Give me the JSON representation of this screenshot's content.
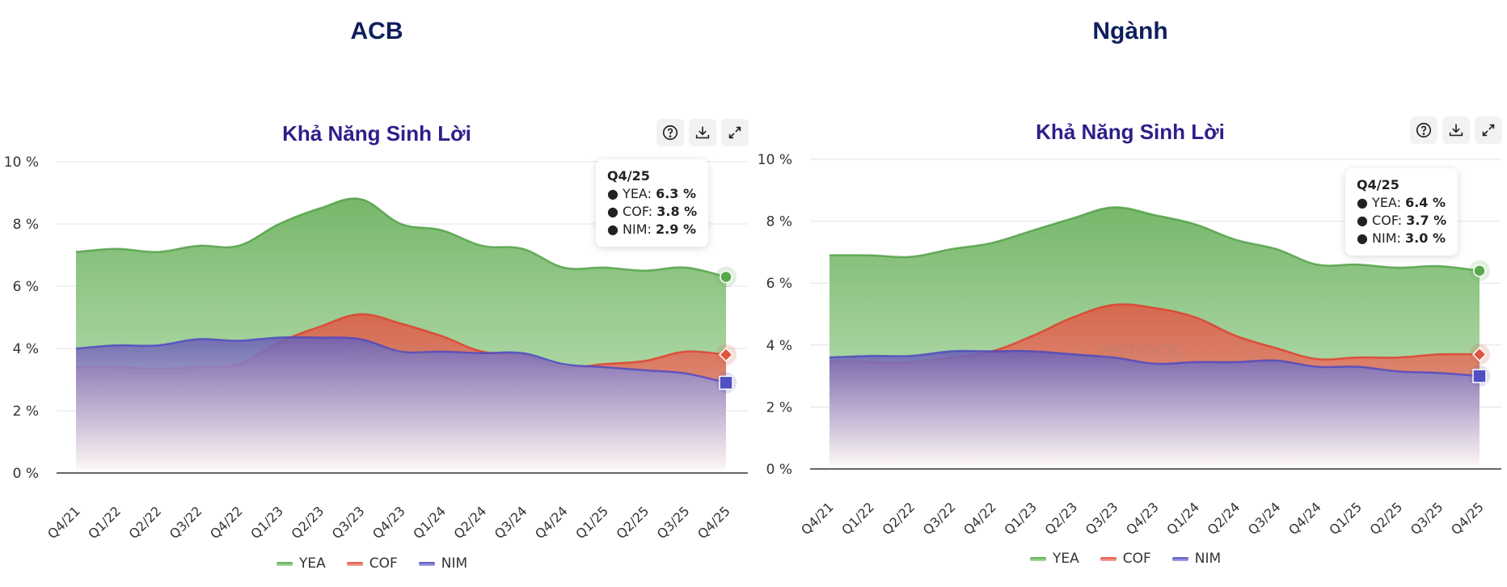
{
  "panels": [
    {
      "entity": "ACB",
      "title": "Khả Năng Sinh Lời",
      "toolbar": {
        "help": "help-icon",
        "download": "download-icon",
        "expand": "expand-icon"
      },
      "tooltip": {
        "title": "Q4/25",
        "rows": [
          {
            "label": "YEA:",
            "value": "6.3 %"
          },
          {
            "label": "COF:",
            "value": "3.8 %"
          },
          {
            "label": "NIM:",
            "value": "2.9 %"
          }
        ]
      },
      "legend": [
        "YEA",
        "COF",
        "NIM"
      ]
    },
    {
      "entity": "Ngành",
      "title": "Khả Năng Sinh Lời",
      "toolbar": {
        "help": "help-icon",
        "download": "download-icon",
        "expand": "expand-icon"
      },
      "tooltip": {
        "title": "Q4/25",
        "rows": [
          {
            "label": "YEA:",
            "value": "6.4 %"
          },
          {
            "label": "COF:",
            "value": "3.7 %"
          },
          {
            "label": "NIM:",
            "value": "3.0 %"
          }
        ]
      },
      "legend": [
        "YEA",
        "COF",
        "NIM"
      ]
    }
  ],
  "colors": {
    "YEA": "#5aa84e",
    "COF": "#e0553f",
    "NIM": "#5050c0",
    "title": "#2d1f8a",
    "entity": "#0f1f5c"
  },
  "chart_data": [
    {
      "type": "area",
      "title": "Khả Năng Sinh Lời",
      "subtitle": "ACB",
      "xlabel": "",
      "ylabel": "",
      "ylim": [
        0,
        10
      ],
      "yticks": [
        "0 %",
        "2 %",
        "4 %",
        "6 %",
        "8 %",
        "10 %"
      ],
      "grid": true,
      "legend_position": "bottom",
      "categories": [
        "Q4/21",
        "Q1/22",
        "Q2/22",
        "Q3/22",
        "Q4/22",
        "Q1/23",
        "Q2/23",
        "Q3/23",
        "Q4/23",
        "Q1/24",
        "Q2/24",
        "Q3/24",
        "Q4/24",
        "Q1/25",
        "Q2/25",
        "Q3/25",
        "Q4/25"
      ],
      "series": [
        {
          "name": "YEA",
          "values": [
            7.1,
            7.2,
            7.1,
            7.3,
            7.3,
            8.0,
            8.5,
            8.8,
            8.0,
            7.8,
            7.3,
            7.2,
            6.6,
            6.6,
            6.5,
            6.6,
            6.3
          ]
        },
        {
          "name": "COF",
          "values": [
            3.4,
            3.4,
            3.35,
            3.4,
            3.5,
            4.2,
            4.7,
            5.1,
            4.8,
            4.4,
            3.9,
            3.8,
            3.4,
            3.5,
            3.6,
            3.9,
            3.8
          ]
        },
        {
          "name": "NIM",
          "values": [
            4.0,
            4.1,
            4.1,
            4.3,
            4.25,
            4.35,
            4.35,
            4.3,
            3.9,
            3.9,
            3.85,
            3.85,
            3.5,
            3.4,
            3.3,
            3.2,
            2.9
          ]
        }
      ]
    },
    {
      "type": "area",
      "title": "Khả Năng Sinh Lời",
      "subtitle": "Ngành",
      "xlabel": "",
      "ylabel": "",
      "ylim": [
        0,
        10
      ],
      "yticks": [
        "0 %",
        "2 %",
        "4 %",
        "6 %",
        "8 %",
        "10 %"
      ],
      "grid": true,
      "legend_position": "bottom",
      "categories": [
        "Q4/21",
        "Q1/22",
        "Q2/22",
        "Q3/22",
        "Q4/22",
        "Q1/23",
        "Q2/23",
        "Q3/23",
        "Q4/23",
        "Q1/24",
        "Q2/24",
        "Q3/24",
        "Q4/24",
        "Q1/25",
        "Q2/25",
        "Q3/25",
        "Q4/25"
      ],
      "series": [
        {
          "name": "YEA",
          "values": [
            6.9,
            6.9,
            6.85,
            7.1,
            7.3,
            7.7,
            8.1,
            8.45,
            8.2,
            7.9,
            7.4,
            7.1,
            6.6,
            6.6,
            6.5,
            6.55,
            6.4
          ]
        },
        {
          "name": "COF",
          "values": [
            3.5,
            3.45,
            3.45,
            3.6,
            3.8,
            4.3,
            4.9,
            5.3,
            5.2,
            4.9,
            4.3,
            3.9,
            3.55,
            3.6,
            3.6,
            3.7,
            3.7
          ]
        },
        {
          "name": "NIM",
          "values": [
            3.6,
            3.65,
            3.65,
            3.8,
            3.8,
            3.8,
            3.7,
            3.6,
            3.4,
            3.45,
            3.45,
            3.5,
            3.3,
            3.3,
            3.15,
            3.1,
            3.0
          ]
        }
      ]
    }
  ]
}
